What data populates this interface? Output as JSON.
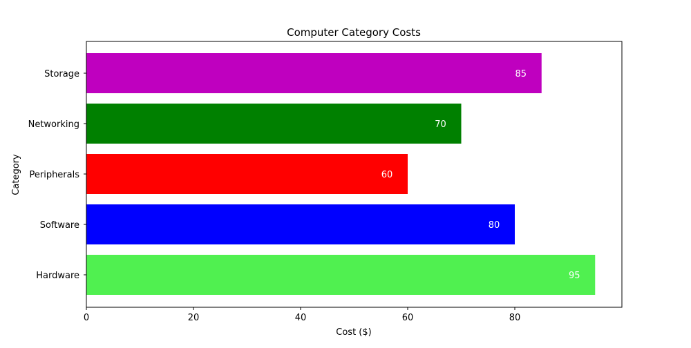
{
  "chart_data": {
    "type": "bar",
    "orientation": "horizontal",
    "title": "Computer Category Costs",
    "xlabel": "Cost ($)",
    "ylabel": "Category",
    "categories": [
      "Hardware",
      "Software",
      "Peripherals",
      "Networking",
      "Storage"
    ],
    "values": [
      95,
      80,
      60,
      70,
      85
    ],
    "colors": [
      "#50f050",
      "#0000ff",
      "#ff0000",
      "#008000",
      "#bf00bf"
    ],
    "data_labels": [
      "95",
      "80",
      "60",
      "70",
      "85"
    ],
    "xlim": [
      0,
      100
    ],
    "xticks": [
      0,
      20,
      40,
      60,
      80
    ],
    "xtick_labels": [
      "0",
      "20",
      "40",
      "60",
      "80"
    ],
    "grid": false,
    "legend": "none"
  }
}
